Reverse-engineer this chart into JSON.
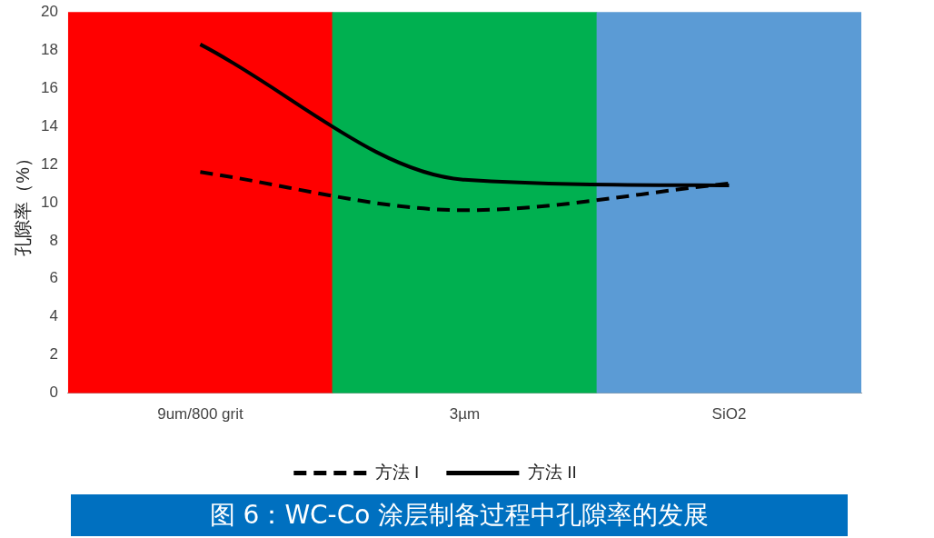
{
  "chart_data": {
    "type": "line",
    "ylabel": "孔隙率（%）",
    "categories": [
      "9um/800 grit",
      "3µm",
      "SiO2"
    ],
    "series": [
      {
        "type": "bar",
        "colors": [
          "#ff0000",
          "#00b050",
          "#5b9bd5"
        ],
        "values": [
          20,
          20,
          20
        ]
      },
      {
        "name": "方法 I",
        "color": "#000000",
        "line_style": "dashed",
        "values": [
          11.6,
          9.6,
          11.0
        ]
      },
      {
        "name": "方法 II",
        "color": "#000000",
        "line_style": "solid",
        "values": [
          18.3,
          11.2,
          10.9
        ]
      }
    ],
    "ylim": [
      0,
      20
    ],
    "yticks": [
      0,
      2,
      4,
      6,
      8,
      10,
      12,
      14,
      16,
      18,
      20
    ],
    "grid": false,
    "legend": "bottom",
    "marker": "none",
    "annotations": [
      "图 6：WC-Co 涂层制备过程中孔隙率的发展"
    ]
  }
}
